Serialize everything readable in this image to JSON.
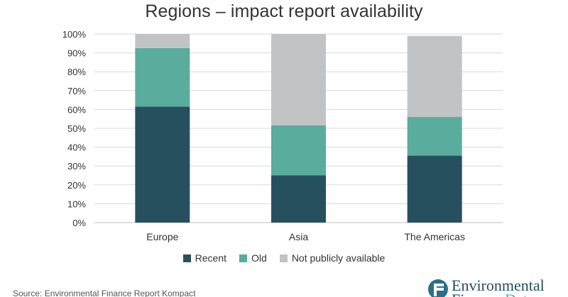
{
  "chart_data": {
    "type": "bar",
    "stacked": true,
    "title": "Regions – impact report availability",
    "categories": [
      "Europe",
      "Asia",
      "The Americas"
    ],
    "series": [
      {
        "name": "Recent",
        "color": "#27505f",
        "values": [
          61.5,
          25,
          35.5
        ]
      },
      {
        "name": "Old",
        "color": "#5aac9c",
        "values": [
          31,
          26.5,
          20.5
        ]
      },
      {
        "name": "Not publicly available",
        "color": "#c2c3c5",
        "values": [
          7.5,
          48.5,
          43
        ]
      }
    ],
    "ylim": [
      0,
      100
    ],
    "yticks": [
      "0%",
      "10%",
      "20%",
      "30%",
      "40%",
      "50%",
      "60%",
      "70%",
      "80%",
      "90%",
      "100%"
    ],
    "xlabel": "",
    "ylabel": "",
    "grid": true,
    "legend_position": "bottom"
  },
  "footer": {
    "source": "Source: Environmental Finance Report Kompact",
    "logo_line1": "Environmental",
    "logo_line2_part1": "Finance",
    "logo_line2_part2": "Data"
  },
  "colors": {
    "grid": "#d9d9d9",
    "axis": "#bfbfbf",
    "text": "#333333"
  }
}
